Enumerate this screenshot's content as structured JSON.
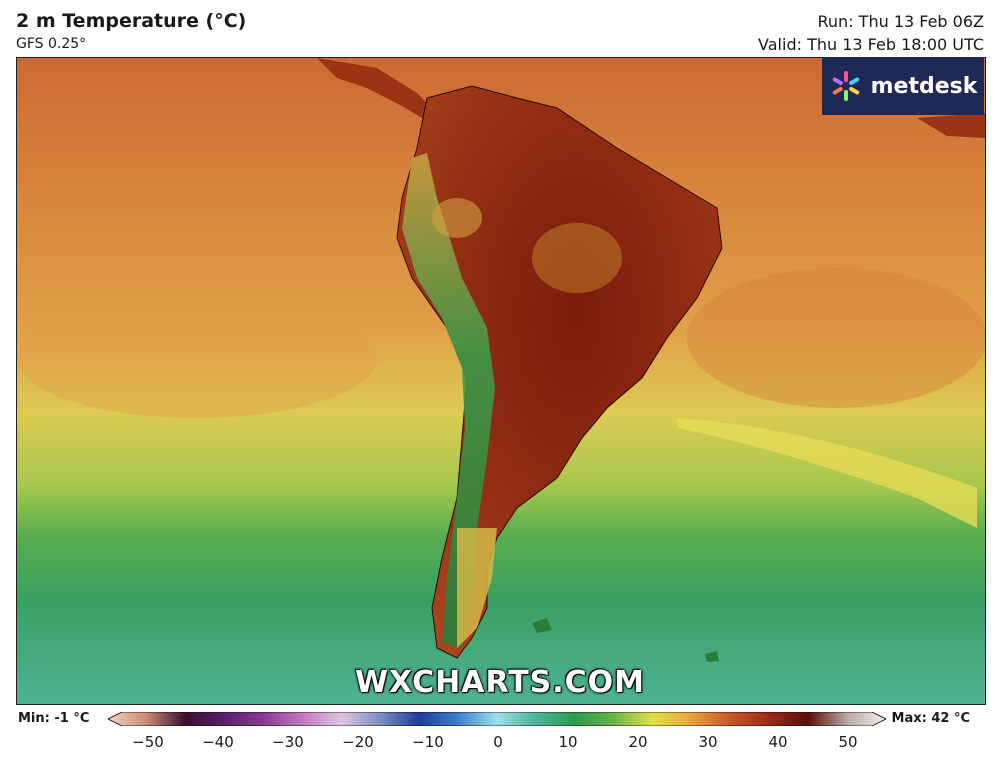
{
  "header": {
    "title": "2 m Temperature (°C)",
    "model": "GFS 0.25°",
    "run": "Run: Thu 13 Feb 06Z",
    "valid": "Valid: Thu 13 Feb 18:00 UTC"
  },
  "brand": {
    "logo_text": "metdesk",
    "watermark": "WXCHARTS.COM",
    "logo_bg": "#1e2a55"
  },
  "legend": {
    "min_label": "Min: -1 °C",
    "max_label": "Max: 42 °C",
    "ticks": [
      "−50",
      "−40",
      "−30",
      "−20",
      "−10",
      "0",
      "10",
      "20",
      "30",
      "40",
      "50"
    ],
    "stops": [
      {
        "value": -50,
        "color": "#f6d3c0"
      },
      {
        "value": -45,
        "color": "#c98a73"
      },
      {
        "value": -40,
        "color": "#3a1030"
      },
      {
        "value": -35,
        "color": "#5c1f6a"
      },
      {
        "value": -30,
        "color": "#8b3a93"
      },
      {
        "value": -25,
        "color": "#c07ac0"
      },
      {
        "value": -20,
        "color": "#e0c4e0"
      },
      {
        "value": -15,
        "color": "#7a8fbf"
      },
      {
        "value": -10,
        "color": "#1f3c9a"
      },
      {
        "value": -5,
        "color": "#3f7fc8"
      },
      {
        "value": 0,
        "color": "#9fe0e8"
      },
      {
        "value": 5,
        "color": "#4fb39a"
      },
      {
        "value": 10,
        "color": "#2c9a4f"
      },
      {
        "value": 15,
        "color": "#6ab34a"
      },
      {
        "value": 20,
        "color": "#e4e04a"
      },
      {
        "value": 25,
        "color": "#e8a23a"
      },
      {
        "value": 30,
        "color": "#c9572a"
      },
      {
        "value": 35,
        "color": "#9a2a16"
      },
      {
        "value": 40,
        "color": "#5a1008"
      },
      {
        "value": 45,
        "color": "#b8a8a0"
      },
      {
        "value": 50,
        "color": "#f2f2f2"
      }
    ]
  }
}
